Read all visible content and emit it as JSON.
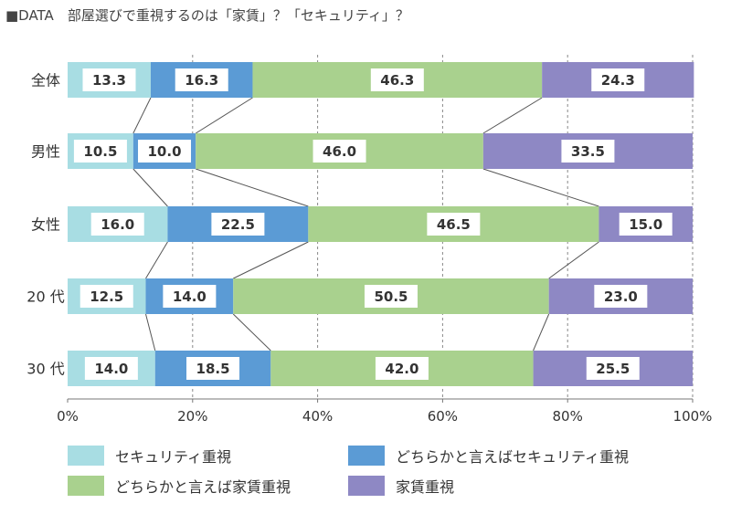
{
  "title": "■DATA　部屋選びで重視するのは「家賃」？「セキュリティ」？",
  "chart_data": {
    "type": "bar",
    "orientation": "horizontal",
    "stacked": "100%",
    "categories": [
      "全体",
      "男性",
      "女性",
      "20 代",
      "30 代"
    ],
    "series": [
      {
        "name": "セキュリティ重視",
        "color": "#a8dde3",
        "values": [
          13.3,
          10.5,
          16.0,
          12.5,
          14.0
        ]
      },
      {
        "name": "どちらかと言えばセキュリティ重視",
        "color": "#5b9bd5",
        "values": [
          16.3,
          10.0,
          22.5,
          14.0,
          18.5
        ]
      },
      {
        "name": "どちらかと言えば家賃重視",
        "color": "#a9d18e",
        "values": [
          46.3,
          46.0,
          46.5,
          50.5,
          42.0
        ]
      },
      {
        "name": "家賃重視",
        "color": "#8e88c4",
        "values": [
          24.3,
          33.5,
          15.0,
          23.0,
          25.5
        ]
      }
    ],
    "value_labels": [
      [
        "13.3",
        "16.3",
        "46.3",
        "24.3"
      ],
      [
        "10.5",
        "10.0",
        "46.0",
        "33.5"
      ],
      [
        "16.0",
        "22.5",
        "46.5",
        "15.0"
      ],
      [
        "12.5",
        "14.0",
        "50.5",
        "23.0"
      ],
      [
        "14.0",
        "18.5",
        "42.0",
        "25.5"
      ]
    ],
    "xlim": [
      0,
      100
    ],
    "xticks": [
      "0%",
      "20%",
      "40%",
      "60%",
      "80%",
      "100%"
    ],
    "grid": "vertical dashed",
    "legend_position": "bottom",
    "connector_lines": true
  }
}
